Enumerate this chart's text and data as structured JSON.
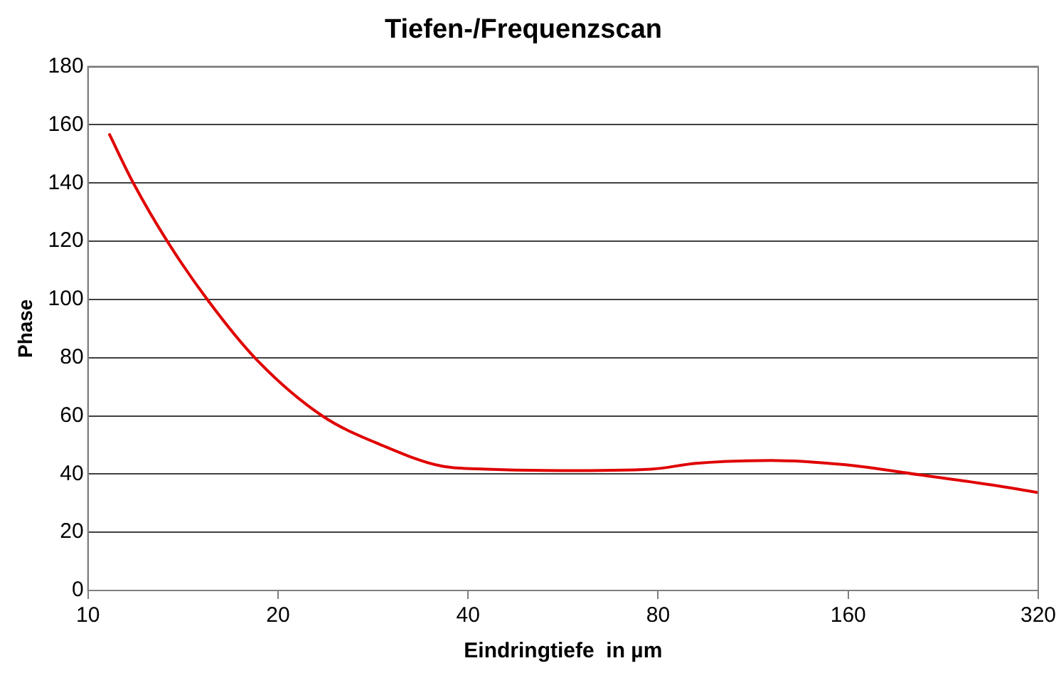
{
  "chart_data": {
    "type": "line",
    "title": "Tiefen-/Frequenzscan",
    "xlabel": "Eindringtiefe  in µm",
    "ylabel": "Phase",
    "log": "x",
    "grid": "y",
    "marker": "none",
    "line_style": "solid",
    "x": [
      10.8,
      11.8,
      13.4,
      15.5,
      18.5,
      23.5,
      29.3,
      36.4,
      42.8,
      56.3,
      78,
      91.9,
      120.7,
      158.5,
      208,
      273,
      320
    ],
    "series": [
      {
        "color": "#e00000",
        "values": [
          157,
          140,
          119.5,
          99.6,
          79.3,
          60,
          49.8,
          42.7,
          41.7,
          41.2,
          41.7,
          43.7,
          44.7,
          43.2,
          39.7,
          36.1,
          33.6
        ]
      }
    ],
    "xlim": [
      10,
      320
    ],
    "xticks": [
      10,
      20,
      40,
      80,
      160,
      320
    ],
    "ylim": [
      0,
      180
    ],
    "yticks": [
      0,
      20,
      40,
      60,
      80,
      100,
      120,
      140,
      160,
      180
    ]
  }
}
